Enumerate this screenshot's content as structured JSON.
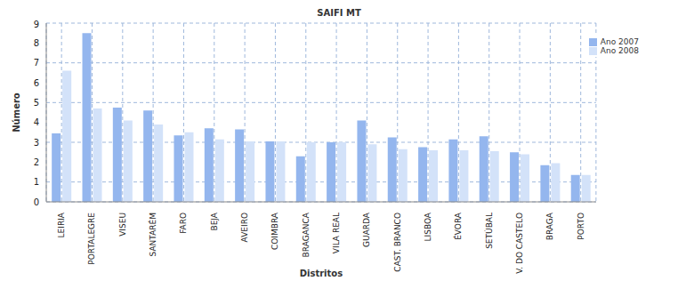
{
  "chart_data": {
    "type": "bar",
    "title": "SAIFI MT",
    "x_label": "Distritos",
    "y_label": "Número",
    "categories": [
      "LEIRIA",
      "PORTALEGRE",
      "VISEU",
      "SANTARÉM",
      "FARO",
      "BEJA",
      "AVEIRO",
      "COIMBRA",
      "BRAGANCA",
      "VILA REAL",
      "GUARDA",
      "CAST. BRANCO",
      "LISBOA",
      "ÉVORA",
      "SETÚBAL",
      "V. DO CASTELO",
      "BRAGA",
      "PORTO"
    ],
    "series": [
      {
        "name": "Ano 2007",
        "color": "#94b6ee",
        "values": [
          3.45,
          8.5,
          4.75,
          4.6,
          3.35,
          3.7,
          3.65,
          3.05,
          2.3,
          3.0,
          4.1,
          3.25,
          2.75,
          3.15,
          3.3,
          2.5,
          1.85,
          1.35
        ]
      },
      {
        "name": "Ano 2008",
        "color": "#d3e2f9",
        "values": [
          6.6,
          4.7,
          4.1,
          3.9,
          3.5,
          3.15,
          3.05,
          3.05,
          3.0,
          3.0,
          2.9,
          2.65,
          2.6,
          2.6,
          2.55,
          2.4,
          1.95,
          1.35
        ]
      }
    ],
    "ylim": [
      0,
      9
    ],
    "yticks": [
      0,
      1,
      2,
      3,
      4,
      5,
      6,
      7,
      8,
      9
    ],
    "grid": true,
    "legend": "top-right"
  }
}
